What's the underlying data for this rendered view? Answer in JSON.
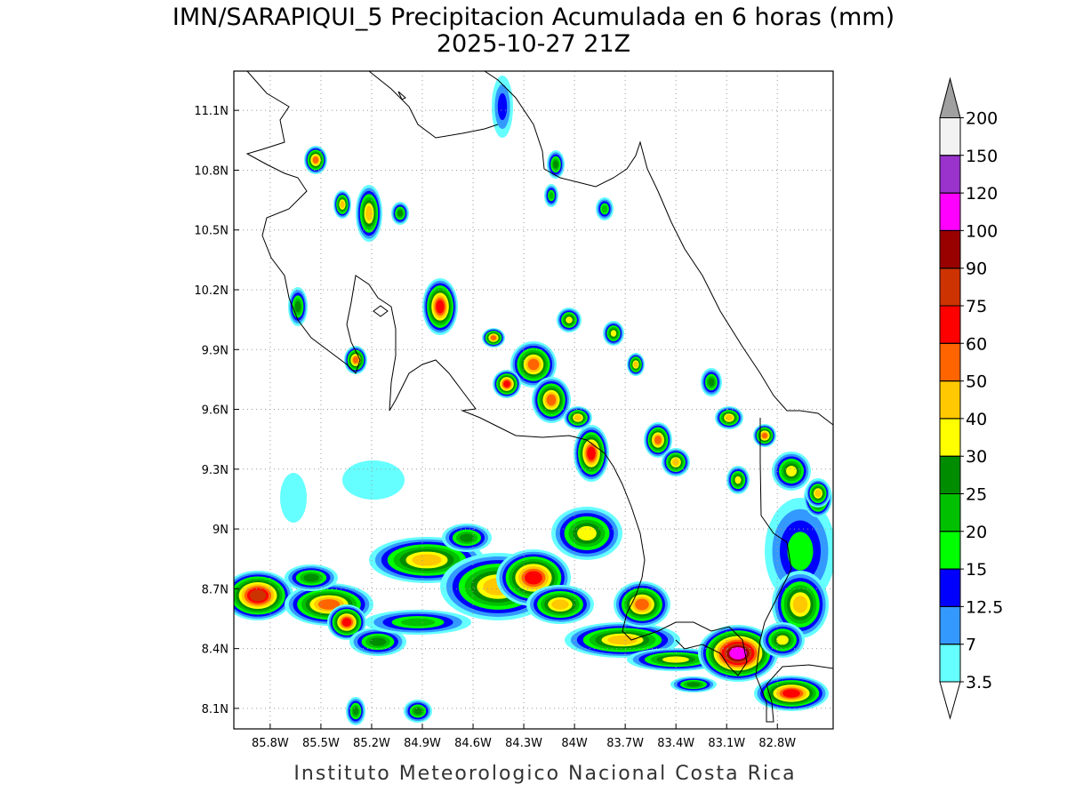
{
  "map": {
    "title": "IMN/SARAPIQUI_5 Precipitacion Acumulada en 6 horas (mm)",
    "subtitle": "2025-10-27 21Z",
    "footer": "Instituto Meteorologico Nacional Costa Rica",
    "xlim": [
      -86.015,
      -82.47
    ],
    "ylim": [
      7.997,
      11.297
    ],
    "xticks": [
      {
        "value": -85.8,
        "label": "85.8W"
      },
      {
        "value": -85.5,
        "label": "85.5W"
      },
      {
        "value": -85.2,
        "label": "85.2W"
      },
      {
        "value": -84.9,
        "label": "84.9W"
      },
      {
        "value": -84.6,
        "label": "84.6W"
      },
      {
        "value": -84.3,
        "label": "84.3W"
      },
      {
        "value": -84,
        "label": "84W"
      },
      {
        "value": -83.7,
        "label": "83.7W"
      },
      {
        "value": -83.4,
        "label": "83.4W"
      },
      {
        "value": -83.1,
        "label": "83.1W"
      },
      {
        "value": -82.8,
        "label": "82.8W"
      }
    ],
    "yticks": [
      {
        "value": 8.1,
        "label": "8.1N"
      },
      {
        "value": 8.4,
        "label": "8.4N"
      },
      {
        "value": 8.7,
        "label": "8.7N"
      },
      {
        "value": 9,
        "label": "9N"
      },
      {
        "value": 9.3,
        "label": "9.3N"
      },
      {
        "value": 9.6,
        "label": "9.6N"
      },
      {
        "value": 9.9,
        "label": "9.9N"
      },
      {
        "value": 10.2,
        "label": "10.2N"
      },
      {
        "value": 10.5,
        "label": "10.5N"
      },
      {
        "value": 10.8,
        "label": "10.8N"
      },
      {
        "value": 11.1,
        "label": "11.1N"
      }
    ],
    "grid": true,
    "colorbar": {
      "levels": [
        3.5,
        7,
        12.5,
        15,
        20,
        25,
        30,
        40,
        50,
        60,
        75,
        90,
        100,
        120,
        150,
        200
      ],
      "colors": [
        "#ffffff",
        "#66ffff",
        "#3399ff",
        "#0000ff",
        "#00ff00",
        "#00c000",
        "#008c00",
        "#ffff00",
        "#ffc800",
        "#ff6400",
        "#ff0000",
        "#cc3300",
        "#990000",
        "#ff00ff",
        "#9933cc",
        "#f2f2f2",
        "#a0a0a0"
      ]
    }
  }
}
